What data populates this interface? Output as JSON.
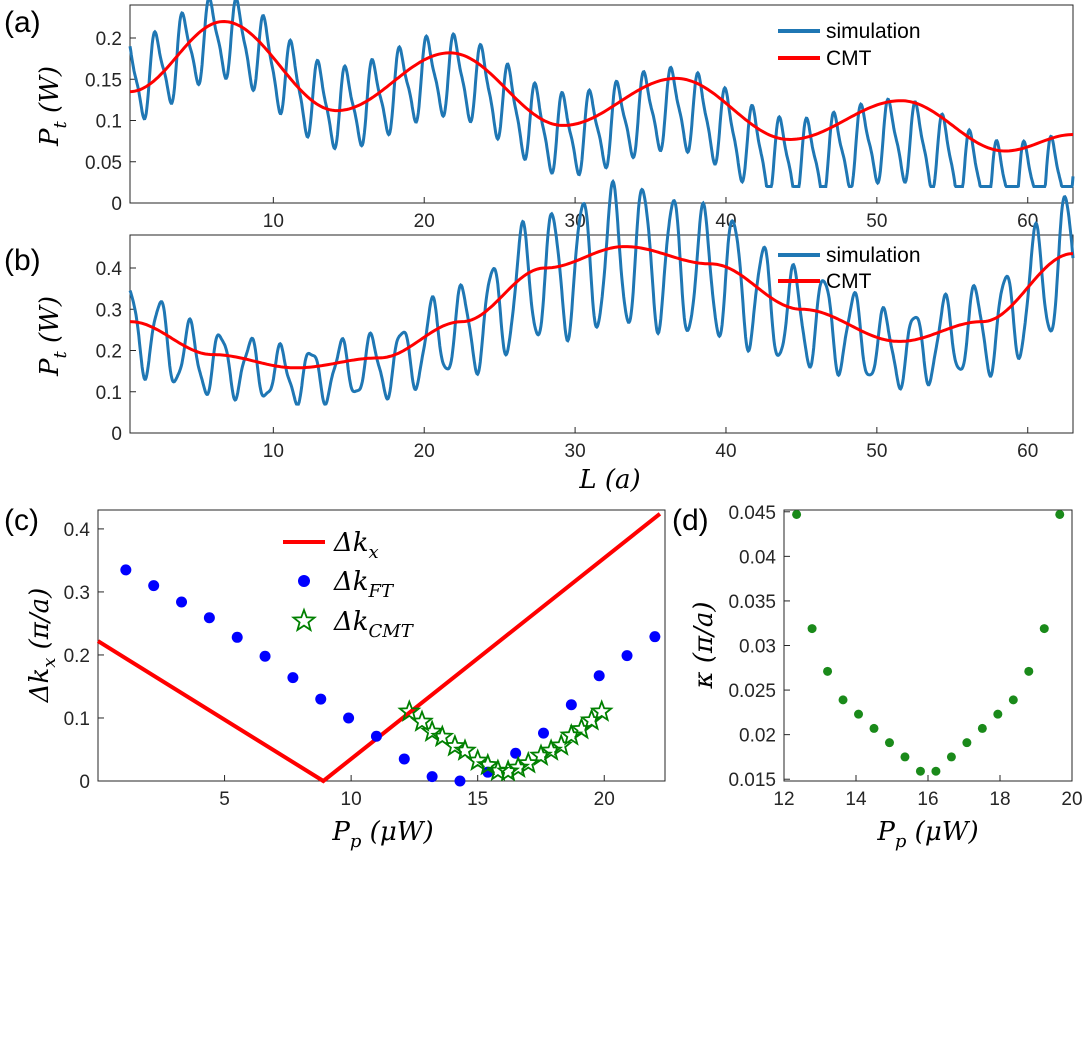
{
  "chart_data": [
    {
      "panel": "(a)",
      "type": "line",
      "xlim": [
        0.5,
        63
      ],
      "ylim": [
        0,
        0.24
      ],
      "xticks": [
        "10",
        "20",
        "30",
        "40",
        "50",
        "60"
      ],
      "yticks": [
        "0",
        "0.05",
        "0.1",
        "0.15",
        "0.2"
      ],
      "ylabel": "P_t (W)",
      "xlabel": "",
      "legend": [
        "simulation",
        "CMT"
      ],
      "series": [
        {
          "name": "simulation",
          "color": "#1f77b4",
          "mean": 0.145,
          "mean_end": 0.05,
          "amplitude": 0.045,
          "fast_period": 1.8,
          "envelope": {
            "center": 0.12,
            "amp": 0.04,
            "period": 14.9,
            "phase_x": 6.7
          }
        },
        {
          "name": "CMT",
          "color": "#ff0000",
          "points": [
            [
              0.5,
              0.135
            ],
            [
              6.7,
              0.22
            ],
            [
              14.2,
              0.112
            ],
            [
              21.7,
              0.182
            ],
            [
              29.2,
              0.094
            ],
            [
              36.7,
              0.151
            ],
            [
              44.2,
              0.077
            ],
            [
              51.6,
              0.124
            ],
            [
              58.5,
              0.063
            ],
            [
              63,
              0.083
            ]
          ]
        }
      ]
    },
    {
      "panel": "(b)",
      "type": "line",
      "xlim": [
        0.5,
        63
      ],
      "ylim": [
        0,
        0.48
      ],
      "xticks": [
        "10",
        "20",
        "30",
        "40",
        "50",
        "60"
      ],
      "yticks": [
        "0",
        "0.1",
        "0.2",
        "0.3",
        "0.4"
      ],
      "ylabel": "P_t (W)",
      "xlabel": "L (a)",
      "legend": [
        "simulation",
        "CMT"
      ],
      "series": [
        {
          "name": "simulation",
          "color": "#1f77b4",
          "fast_period": 2.0
        },
        {
          "name": "CMT",
          "color": "#ff0000",
          "points": [
            [
              0.5,
              0.27
            ],
            [
              6,
              0.19
            ],
            [
              11.5,
              0.158
            ],
            [
              17,
              0.182
            ],
            [
              22.5,
              0.27
            ],
            [
              28,
              0.4
            ],
            [
              33.3,
              0.452
            ],
            [
              39,
              0.41
            ],
            [
              45,
              0.3
            ],
            [
              51.5,
              0.222
            ],
            [
              57,
              0.27
            ],
            [
              63,
              0.435
            ]
          ]
        }
      ]
    },
    {
      "panel": "(c)",
      "type": "scatter",
      "xlim": [
        0,
        22.4
      ],
      "ylim": [
        0,
        0.43
      ],
      "xticks": [
        "5",
        "10",
        "15",
        "20"
      ],
      "yticks": [
        "0",
        "0.1",
        "0.2",
        "0.3",
        "0.4"
      ],
      "xlabel": "P_p (μW)",
      "ylabel": "Δk_x (π/a)",
      "legend": [
        "Δk_x",
        "Δk_FT",
        "Δk_CMT"
      ],
      "series": [
        {
          "name": "Δk_x",
          "type": "line",
          "color": "#ff0000",
          "points": [
            [
              0,
              0.222
            ],
            [
              8.9,
              0.0
            ],
            [
              22.2,
              0.424
            ]
          ]
        },
        {
          "name": "Δk_FT",
          "type": "scatter",
          "marker": "dot",
          "color": "#0000ff",
          "points": [
            [
              1.1,
              0.335
            ],
            [
              2.2,
              0.31
            ],
            [
              3.3,
              0.284
            ],
            [
              4.4,
              0.259
            ],
            [
              5.5,
              0.228
            ],
            [
              6.6,
              0.198
            ],
            [
              7.7,
              0.164
            ],
            [
              8.8,
              0.13
            ],
            [
              9.9,
              0.1
            ],
            [
              11,
              0.071
            ],
            [
              12.1,
              0.035
            ],
            [
              13.2,
              0.007
            ],
            [
              14.3,
              0.0
            ],
            [
              15.4,
              0.014
            ],
            [
              16.5,
              0.044
            ],
            [
              17.6,
              0.076
            ],
            [
              18.7,
              0.121
            ],
            [
              19.8,
              0.167
            ],
            [
              20.9,
              0.199
            ],
            [
              22,
              0.229
            ]
          ]
        },
        {
          "name": "Δk_CMT",
          "type": "scatter",
          "marker": "star",
          "color": "#008000",
          "points": [
            [
              12.3,
              0.11
            ],
            [
              12.8,
              0.094
            ],
            [
              13.2,
              0.078
            ],
            [
              13.6,
              0.07
            ],
            [
              14.1,
              0.055
            ],
            [
              14.5,
              0.048
            ],
            [
              15,
              0.032
            ],
            [
              15.4,
              0.025
            ],
            [
              15.8,
              0.016
            ],
            [
              16.2,
              0.015
            ],
            [
              16.6,
              0.021
            ],
            [
              17,
              0.028
            ],
            [
              17.5,
              0.04
            ],
            [
              17.9,
              0.048
            ],
            [
              18.3,
              0.056
            ],
            [
              18.7,
              0.072
            ],
            [
              19.1,
              0.082
            ],
            [
              19.5,
              0.096
            ],
            [
              19.9,
              0.11
            ]
          ]
        }
      ]
    },
    {
      "panel": "(d)",
      "type": "scatter",
      "xlim": [
        12,
        20
      ],
      "ylim": [
        0.0148,
        0.0452
      ],
      "xticks": [
        "12",
        "14",
        "16",
        "18",
        "20"
      ],
      "yticks": [
        "0.015",
        "0.02",
        "0.025",
        "0.03",
        "0.035",
        "0.04",
        "0.045"
      ],
      "xlabel": "P_p (μW)",
      "ylabel": "κ (π/a)",
      "series": [
        {
          "name": "κ",
          "type": "scatter",
          "marker": "dot",
          "color": "#1a8a1a",
          "points": [
            [
              12.35,
              0.0447
            ],
            [
              12.78,
              0.0319
            ],
            [
              13.21,
              0.0271
            ],
            [
              13.64,
              0.0239
            ],
            [
              14.07,
              0.0223
            ],
            [
              14.5,
              0.0207
            ],
            [
              14.93,
              0.0191
            ],
            [
              15.36,
              0.0175
            ],
            [
              15.79,
              0.0159
            ],
            [
              16.22,
              0.0159
            ],
            [
              16.65,
              0.0175
            ],
            [
              17.08,
              0.0191
            ],
            [
              17.51,
              0.0207
            ],
            [
              17.94,
              0.0223
            ],
            [
              18.37,
              0.0239
            ],
            [
              18.8,
              0.0271
            ],
            [
              19.23,
              0.0319
            ],
            [
              19.66,
              0.0447
            ]
          ]
        }
      ]
    }
  ]
}
